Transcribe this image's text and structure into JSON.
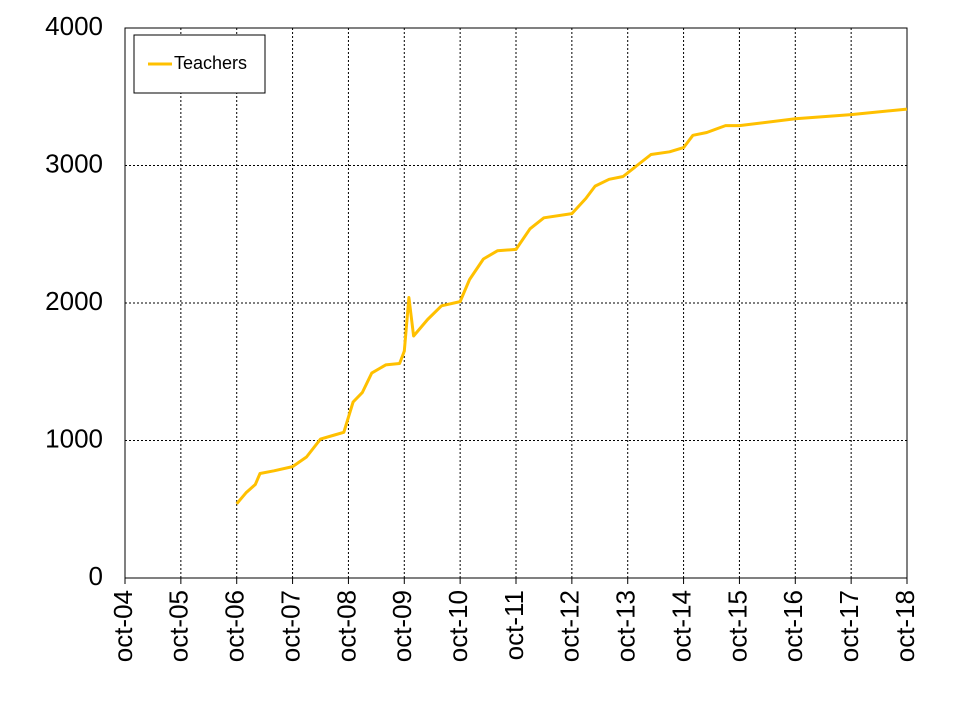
{
  "chart_data": {
    "type": "line",
    "x": [
      "2006-10",
      "2006-12",
      "2007-02",
      "2007-03",
      "2007-06",
      "2007-10",
      "2008-01",
      "2008-04",
      "2008-07",
      "2008-09",
      "2008-11",
      "2009-01",
      "2009-03",
      "2009-06",
      "2009-09",
      "2009-10",
      "2009-11",
      "2009-12",
      "2010-03",
      "2010-06",
      "2010-10",
      "2010-12",
      "2011-03",
      "2011-06",
      "2011-10",
      "2012-01",
      "2012-04",
      "2012-10",
      "2013-01",
      "2013-03",
      "2013-06",
      "2013-09",
      "2013-12",
      "2014-03",
      "2014-07",
      "2014-10",
      "2014-12",
      "2015-03",
      "2015-07",
      "2015-10",
      "2016-10",
      "2017-10",
      "2018-10"
    ],
    "series": [
      {
        "name": "Teachers",
        "color": "#ffc000",
        "values": [
          540,
          620,
          680,
          760,
          780,
          810,
          880,
          1010,
          1040,
          1060,
          1280,
          1350,
          1490,
          1550,
          1560,
          1650,
          2040,
          1760,
          1880,
          1980,
          2010,
          2170,
          2320,
          2380,
          2390,
          2540,
          2620,
          2650,
          2760,
          2850,
          2900,
          2920,
          3000,
          3080,
          3100,
          3130,
          3220,
          3240,
          3290,
          3290,
          3340,
          3370,
          3410
        ]
      }
    ],
    "xlim": [
      "2004-10",
      "2018-10"
    ],
    "xticks": [
      {
        "value": "2004-10",
        "label": "oct-04"
      },
      {
        "value": "2005-10",
        "label": "oct-05"
      },
      {
        "value": "2006-10",
        "label": "oct-06"
      },
      {
        "value": "2007-10",
        "label": "oct-07"
      },
      {
        "value": "2008-10",
        "label": "oct-08"
      },
      {
        "value": "2009-10",
        "label": "oct-09"
      },
      {
        "value": "2010-10",
        "label": "oct-10"
      },
      {
        "value": "2011-10",
        "label": "oct-11"
      },
      {
        "value": "2012-10",
        "label": "oct-12"
      },
      {
        "value": "2013-10",
        "label": "oct-13"
      },
      {
        "value": "2014-10",
        "label": "oct-14"
      },
      {
        "value": "2015-10",
        "label": "oct-15"
      },
      {
        "value": "2016-10",
        "label": "oct-16"
      },
      {
        "value": "2017-10",
        "label": "oct-17"
      },
      {
        "value": "2018-10",
        "label": "oct-18"
      }
    ],
    "ylim": [
      0,
      4000
    ],
    "yticks": [
      0,
      1000,
      2000,
      3000,
      4000
    ],
    "grid": true,
    "legend": "top-left"
  }
}
